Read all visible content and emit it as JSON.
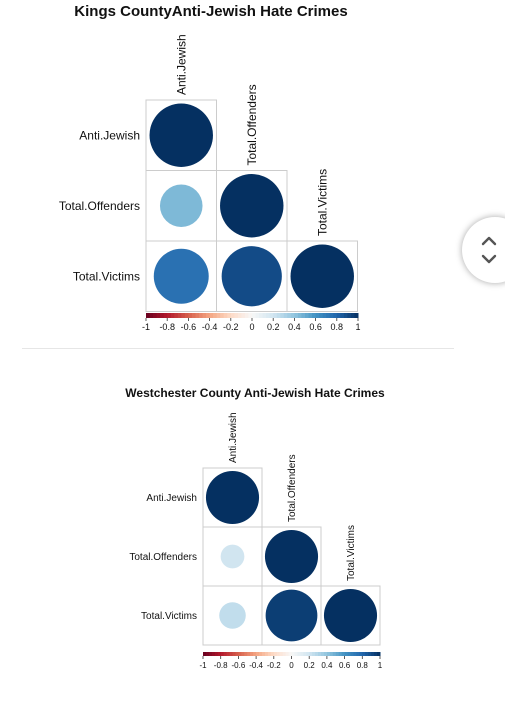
{
  "chart_data": [
    {
      "type": "heatmap",
      "title": "Kings CountyAnti-Jewish Hate Crimes",
      "variables": [
        "Anti.Jewish",
        "Total.Offenders",
        "Total.Victims"
      ],
      "matrix": [
        [
          1.0,
          0.45,
          0.75
        ],
        [
          0.45,
          1.0,
          0.9
        ],
        [
          0.75,
          0.9,
          1.0
        ]
      ],
      "colorbar_ticks": [
        "-1",
        "-0.8",
        "-0.6",
        "-0.4",
        "-0.2",
        "0",
        "0.2",
        "0.4",
        "0.6",
        "0.8",
        "1"
      ],
      "colorbar_range": [
        -1,
        1
      ],
      "layout": "lower-triangle"
    },
    {
      "type": "heatmap",
      "title": "Westchester County Anti-Jewish Hate Crimes",
      "variables": [
        "Anti.Jewish",
        "Total.Offenders",
        "Total.Victims"
      ],
      "matrix": [
        [
          1.0,
          0.2,
          0.25
        ],
        [
          0.2,
          1.0,
          0.95
        ],
        [
          0.25,
          0.95,
          1.0
        ]
      ],
      "colorbar_ticks": [
        "-1",
        "-0.8",
        "-0.6",
        "-0.4",
        "-0.2",
        "0",
        "0.2",
        "0.4",
        "0.6",
        "0.8",
        "1"
      ],
      "colorbar_range": [
        -1,
        1
      ],
      "layout": "lower-triangle"
    }
  ],
  "colors": {
    "negative": "#67001F",
    "neutral": "#F7F7F7",
    "positive": "#053061",
    "grid": "#cccccc"
  },
  "scroll_widget": {
    "up_icon": "chevron-up-icon",
    "down_icon": "chevron-down-icon"
  }
}
